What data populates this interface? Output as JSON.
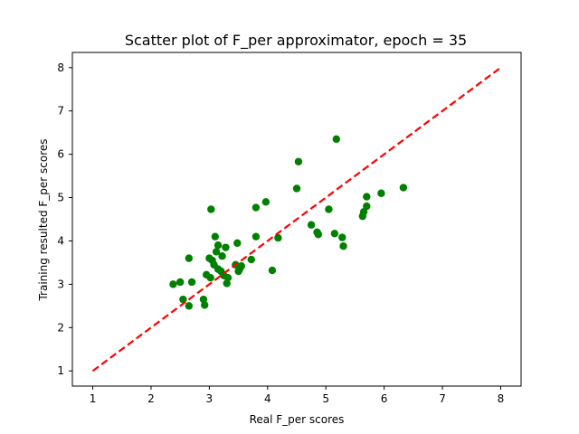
{
  "chart_data": {
    "type": "scatter",
    "title": "Scatter plot of F_per approximator, epoch = 35",
    "xlabel": "Real F_per scores",
    "ylabel": "Training resulted F_per scores",
    "xlim": [
      0.65,
      8.35
    ],
    "ylim": [
      0.65,
      8.35
    ],
    "xticks": [
      1,
      2,
      3,
      4,
      5,
      6,
      7,
      8
    ],
    "yticks": [
      1,
      2,
      3,
      4,
      5,
      6,
      7,
      8
    ],
    "point_color": "#008000",
    "reference_line": {
      "x": [
        1,
        8
      ],
      "y": [
        1,
        8
      ],
      "color": "#ff0000",
      "style": "dashed"
    },
    "series": [
      {
        "points": [
          [
            2.38,
            3.0
          ],
          [
            2.5,
            3.05
          ],
          [
            2.55,
            2.65
          ],
          [
            2.65,
            3.6
          ],
          [
            2.65,
            2.5
          ],
          [
            2.7,
            3.05
          ],
          [
            2.9,
            2.65
          ],
          [
            2.92,
            2.52
          ],
          [
            2.95,
            3.22
          ],
          [
            3.0,
            3.6
          ],
          [
            3.02,
            3.15
          ],
          [
            3.03,
            4.73
          ],
          [
            3.05,
            3.55
          ],
          [
            3.08,
            3.45
          ],
          [
            3.1,
            4.1
          ],
          [
            3.12,
            3.75
          ],
          [
            3.15,
            3.9
          ],
          [
            3.15,
            3.35
          ],
          [
            3.2,
            3.3
          ],
          [
            3.22,
            3.65
          ],
          [
            3.25,
            3.2
          ],
          [
            3.28,
            3.85
          ],
          [
            3.3,
            3.02
          ],
          [
            3.32,
            3.15
          ],
          [
            3.45,
            3.45
          ],
          [
            3.48,
            3.95
          ],
          [
            3.5,
            3.3
          ],
          [
            3.52,
            3.35
          ],
          [
            3.55,
            3.42
          ],
          [
            3.72,
            3.57
          ],
          [
            3.8,
            4.77
          ],
          [
            3.8,
            4.1
          ],
          [
            3.97,
            4.9
          ],
          [
            4.08,
            3.32
          ],
          [
            4.18,
            4.07
          ],
          [
            4.5,
            5.21
          ],
          [
            4.53,
            5.83
          ],
          [
            4.75,
            4.37
          ],
          [
            4.85,
            4.2
          ],
          [
            4.87,
            4.15
          ],
          [
            5.05,
            4.73
          ],
          [
            5.15,
            4.17
          ],
          [
            5.18,
            6.35
          ],
          [
            5.28,
            4.08
          ],
          [
            5.3,
            3.88
          ],
          [
            5.63,
            4.57
          ],
          [
            5.65,
            4.67
          ],
          [
            5.7,
            5.02
          ],
          [
            5.7,
            4.8
          ],
          [
            5.95,
            5.1
          ],
          [
            6.33,
            5.23
          ]
        ]
      }
    ]
  }
}
